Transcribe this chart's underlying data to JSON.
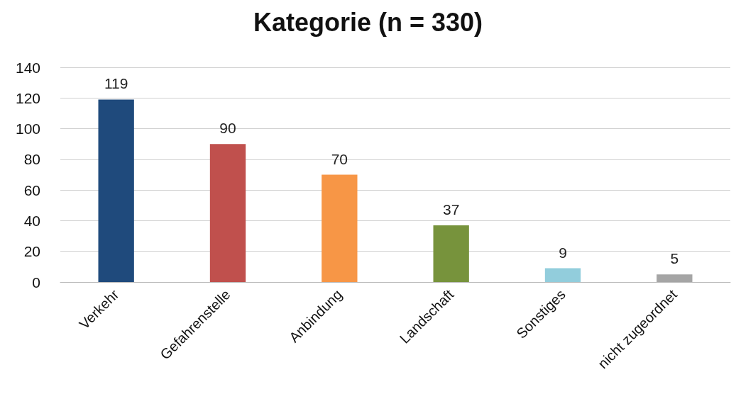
{
  "chart_data": {
    "type": "bar",
    "title": "Kategorie (n = 330)",
    "categories": [
      "Verkehr",
      "Gefahrenstelle",
      "Anbindung",
      "Landschaft",
      "Sonstiges",
      "nicht zugeordnet"
    ],
    "values": [
      119,
      90,
      70,
      37,
      9,
      5
    ],
    "colors": [
      "#1f4a7c",
      "#c0504d",
      "#f79646",
      "#77933c",
      "#92cddc",
      "#a5a5a5"
    ],
    "ylim": [
      0,
      140
    ],
    "yticks": [
      0,
      20,
      40,
      60,
      80,
      100,
      120,
      140
    ],
    "grid": "y",
    "data_labels": true
  }
}
